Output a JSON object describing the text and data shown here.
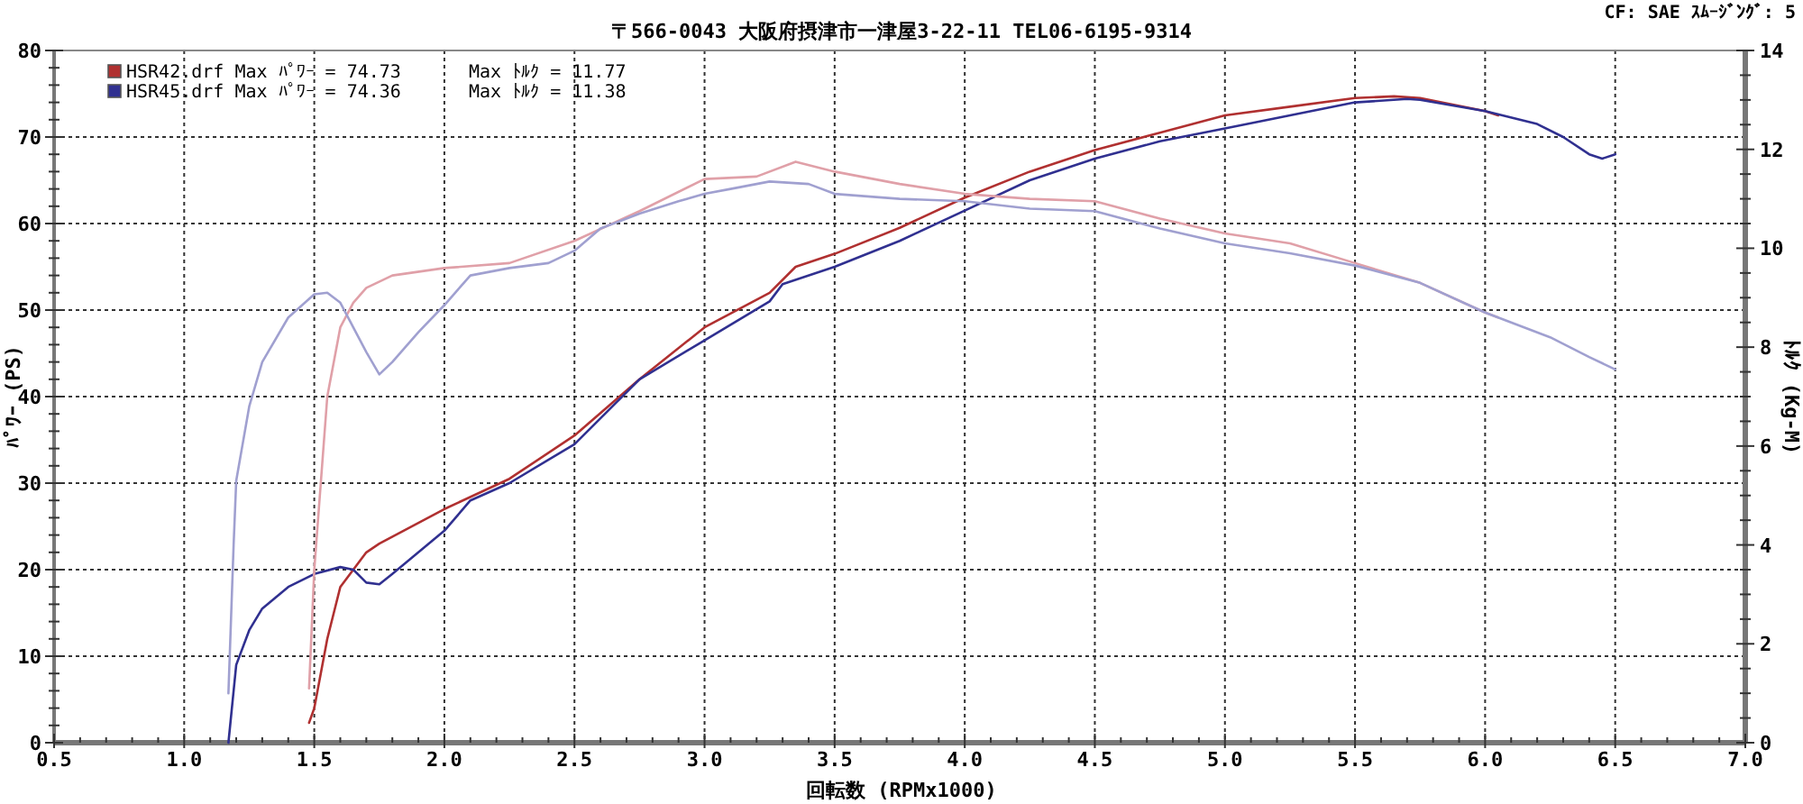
{
  "chart_data": {
    "type": "line",
    "subtitle": "〒566-0043 大阪府摂津市一津屋3-22-11 TEL06-6195-9314",
    "xlabel": "回転数 (RPMx1000)",
    "ylabel": "ﾊﾟﾜｰ (PS)",
    "y2label": "ﾄﾙｸ (Kg-M)",
    "annotations": [
      "CF: SAE ｽﾑｰｼﾞﾝｸﾞ: 5",
      "Max ﾄﾙｸ = 11.77",
      "Max ﾄﾙｸ = 11.38"
    ],
    "xlim": [
      0.5,
      7.0
    ],
    "xticks": [
      0.5,
      {
        "value": 1,
        "label": "1.0"
      },
      1.5,
      {
        "value": 2,
        "label": "2.0"
      },
      2.5,
      {
        "value": 3,
        "label": "3.0"
      },
      3.5,
      {
        "value": 4,
        "label": "4.0"
      },
      4.5,
      {
        "value": 5,
        "label": "5.0"
      },
      5.5,
      {
        "value": 6,
        "label": "6.0"
      },
      6.5,
      {
        "value": 7,
        "label": "7.0"
      }
    ],
    "ylim": [
      0,
      80
    ],
    "yticks": [
      0,
      10,
      20,
      30,
      40,
      50,
      60,
      70,
      80
    ],
    "y2lim": [
      0,
      14
    ],
    "y2ticks": [
      0,
      2,
      4,
      6,
      8,
      10,
      12,
      14
    ],
    "grid": true,
    "legend": "top left",
    "marker": "none",
    "line_style": "solid",
    "series": [
      {
        "name": "HSR42.drf Max ﾊﾟﾜｰ = 74.73",
        "color": "#b03030",
        "axis": "y",
        "x": [
          1.48,
          1.5,
          1.55,
          1.6,
          1.7,
          1.75,
          2.0,
          2.25,
          2.5,
          2.75,
          3.0,
          3.25,
          3.35,
          3.5,
          3.75,
          4.0,
          4.25,
          4.5,
          4.75,
          5.0,
          5.25,
          5.5,
          5.65,
          5.75,
          6.0,
          6.05
        ],
        "values": [
          2.3,
          4,
          12,
          18,
          22,
          23,
          27,
          30.5,
          35.5,
          42,
          48,
          52,
          55,
          56.5,
          59.5,
          63,
          66,
          68.5,
          70.5,
          72.5,
          73.5,
          74.5,
          74.7,
          74.5,
          73,
          72.5
        ]
      },
      {
        "name": "HSR45.drf Max ﾊﾟﾜｰ = 74.36",
        "color": "#303090",
        "axis": "y",
        "x": [
          1.17,
          1.2,
          1.25,
          1.3,
          1.4,
          1.5,
          1.6,
          1.65,
          1.7,
          1.75,
          1.8,
          2.0,
          2.1,
          2.25,
          2.5,
          2.75,
          3.0,
          3.25,
          3.3,
          3.5,
          3.75,
          4.0,
          4.25,
          4.5,
          4.75,
          5.0,
          5.25,
          5.5,
          5.7,
          5.75,
          6.0,
          6.2,
          6.3,
          6.4,
          6.45,
          6.5
        ],
        "values": [
          0,
          9,
          13,
          15.5,
          18,
          19.5,
          20.3,
          20,
          18.5,
          18.3,
          19.5,
          24.5,
          28,
          30,
          34.5,
          42,
          46.5,
          51,
          53,
          55,
          58,
          61.5,
          65,
          67.5,
          69.5,
          71,
          72.5,
          74,
          74.4,
          74.3,
          73,
          71.5,
          70,
          68,
          67.5,
          68
        ]
      },
      {
        "color": "#e0a0a8",
        "axis": "y2",
        "x": [
          1.48,
          1.5,
          1.55,
          1.6,
          1.65,
          1.7,
          1.8,
          2.0,
          2.25,
          2.5,
          2.75,
          3.0,
          3.2,
          3.35,
          3.5,
          3.75,
          4.0,
          4.25,
          4.5,
          4.75,
          5.0,
          5.25,
          5.5,
          5.75,
          6.0,
          6.05
        ],
        "values": [
          1.1,
          3.5,
          7,
          8.4,
          8.9,
          9.2,
          9.45,
          9.6,
          9.7,
          10.15,
          10.75,
          11.4,
          11.45,
          11.75,
          11.55,
          11.3,
          11.1,
          11.0,
          10.95,
          10.6,
          10.3,
          10.1,
          9.7,
          9.3,
          8.7,
          8.6
        ]
      },
      {
        "color": "#a0a0d0",
        "axis": "y2",
        "x": [
          1.17,
          1.19,
          1.2,
          1.25,
          1.3,
          1.4,
          1.5,
          1.55,
          1.6,
          1.7,
          1.75,
          1.8,
          1.9,
          2.0,
          2.1,
          2.25,
          2.4,
          2.5,
          2.6,
          2.75,
          2.9,
          3.0,
          3.1,
          3.25,
          3.4,
          3.5,
          3.75,
          4.0,
          4.25,
          4.5,
          4.75,
          5.0,
          5.25,
          5.5,
          5.75,
          6.0,
          6.25,
          6.4,
          6.5
        ],
        "values": [
          1.0,
          4.0,
          5.3,
          6.8,
          7.7,
          8.6,
          9.07,
          9.1,
          8.9,
          7.9,
          7.45,
          7.7,
          8.3,
          8.85,
          9.45,
          9.6,
          9.7,
          9.95,
          10.4,
          10.7,
          10.95,
          11.1,
          11.2,
          11.35,
          11.3,
          11.1,
          11.0,
          10.95,
          10.8,
          10.75,
          10.4,
          10.1,
          9.9,
          9.65,
          9.3,
          8.7,
          8.2,
          7.8,
          7.55
        ]
      }
    ]
  }
}
